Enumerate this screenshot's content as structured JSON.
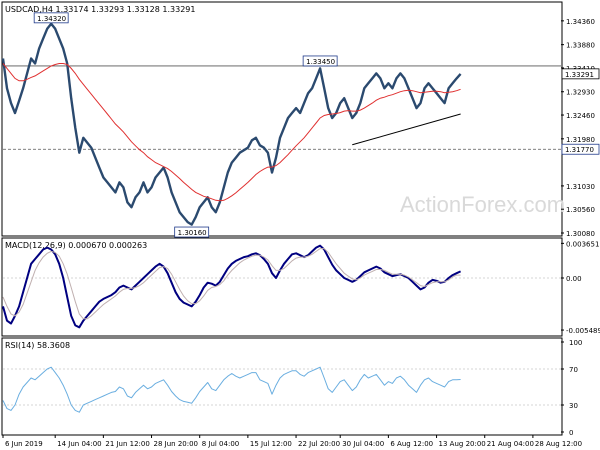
{
  "colors": {
    "price_line": "#2b4a6f",
    "ma_line": "#e03030",
    "macd_line": "#000080",
    "signal_line": "#c0b0b0",
    "rsi_line": "#6aaee0",
    "grid": "#c8c8c8",
    "label_border": "#1f3a8a",
    "watermark": "#d9d9d9"
  },
  "watermark": "ActionForex.com",
  "chart_data": [
    {
      "type": "line",
      "panel": "price",
      "title": "USDCAD,H4  1.33174 1.33293 1.33128 1.33291",
      "ylim": [
        1.3008,
        1.347
      ],
      "y_ticks": [
        "1.34360",
        "1.33880",
        "1.33410",
        "1.32930",
        "1.32460",
        "1.31980",
        "1.31030",
        "1.30560",
        "1.30080"
      ],
      "current_price": "1.33291",
      "levels": [
        {
          "value": 1.3177,
          "label": "1.31770",
          "style": "dashed"
        },
        {
          "value": 1.3345,
          "label": "",
          "style": "solid"
        }
      ],
      "annotations": [
        {
          "label": "1.34320",
          "index": 12,
          "value": 1.3432
        },
        {
          "label": "1.33450",
          "index": 79,
          "value": 1.3345
        },
        {
          "label": "1.30160",
          "index": 47,
          "value": 1.3016
        }
      ],
      "trendline": {
        "start": [
          87,
          1.3186
        ],
        "end": [
          114,
          1.3248
        ]
      },
      "series": [
        {
          "kind": "price",
          "values": [
            1.336,
            1.33,
            1.327,
            1.325,
            1.3275,
            1.33,
            1.333,
            1.336,
            1.335,
            1.338,
            1.34,
            1.342,
            1.343,
            1.342,
            1.34,
            1.338,
            1.335,
            1.328,
            1.322,
            1.317,
            1.32,
            1.319,
            1.318,
            1.316,
            1.314,
            1.312,
            1.311,
            1.31,
            1.309,
            1.311,
            1.31,
            1.307,
            1.306,
            1.308,
            1.309,
            1.311,
            1.309,
            1.31,
            1.312,
            1.313,
            1.314,
            1.312,
            1.309,
            1.307,
            1.305,
            1.304,
            1.303,
            1.3025,
            1.304,
            1.306,
            1.307,
            1.308,
            1.306,
            1.305,
            1.307,
            1.31,
            1.313,
            1.315,
            1.316,
            1.317,
            1.3175,
            1.318,
            1.3195,
            1.32,
            1.3185,
            1.318,
            1.317,
            1.313,
            1.316,
            1.32,
            1.322,
            1.324,
            1.325,
            1.326,
            1.325,
            1.327,
            1.329,
            1.33,
            1.332,
            1.334,
            1.33,
            1.326,
            1.324,
            1.325,
            1.327,
            1.328,
            1.326,
            1.324,
            1.325,
            1.327,
            1.33,
            1.331,
            1.332,
            1.333,
            1.332,
            1.33,
            1.331,
            1.33,
            1.332,
            1.333,
            1.332,
            1.33,
            1.328,
            1.326,
            1.327,
            1.33,
            1.331,
            1.33,
            1.329,
            1.328,
            1.327,
            1.33,
            1.331,
            1.332,
            1.3329
          ]
        },
        {
          "kind": "ma",
          "values": [
            1.335,
            1.334,
            1.333,
            1.332,
            1.3315,
            1.3315,
            1.3318,
            1.3322,
            1.3325,
            1.333,
            1.3335,
            1.334,
            1.3345,
            1.3348,
            1.335,
            1.335,
            1.3348,
            1.334,
            1.333,
            1.3318,
            1.3308,
            1.3298,
            1.3288,
            1.3278,
            1.3268,
            1.3258,
            1.3248,
            1.3238,
            1.3228,
            1.322,
            1.3212,
            1.3202,
            1.3192,
            1.3184,
            1.3176,
            1.317,
            1.3162,
            1.3156,
            1.315,
            1.3146,
            1.3142,
            1.3138,
            1.3132,
            1.3125,
            1.3118,
            1.311,
            1.3103,
            1.3096,
            1.309,
            1.3086,
            1.3082,
            1.308,
            1.3077,
            1.3074,
            1.3073,
            1.3074,
            1.3078,
            1.3083,
            1.3089,
            1.3096,
            1.3103,
            1.311,
            1.3118,
            1.3126,
            1.3132,
            1.3137,
            1.3141,
            1.3141,
            1.3144,
            1.315,
            1.3158,
            1.3166,
            1.3175,
            1.3184,
            1.3192,
            1.32,
            1.321,
            1.322,
            1.323,
            1.324,
            1.3245,
            1.3247,
            1.3248,
            1.3249,
            1.3251,
            1.3254,
            1.3255,
            1.3254,
            1.3254,
            1.3256,
            1.326,
            1.3265,
            1.327,
            1.3276,
            1.328,
            1.3282,
            1.3285,
            1.3287,
            1.329,
            1.3293,
            1.3295,
            1.3296,
            1.3295,
            1.3293,
            1.3291,
            1.3292,
            1.3293,
            1.3294,
            1.3294,
            1.3293,
            1.3291,
            1.3292,
            1.3293,
            1.3295,
            1.3298
          ]
        }
      ]
    },
    {
      "type": "line",
      "panel": "macd",
      "title": "MACD(12,26,9) 0.000670 0.000263",
      "ylim": [
        -0.0058,
        0.0039
      ],
      "y_ticks": [
        "0.003651",
        "0.00",
        "-0.005489"
      ],
      "series": [
        {
          "kind": "macd",
          "values": [
            -0.003,
            -0.0045,
            -0.0048,
            -0.004,
            -0.003,
            -0.0015,
            0.0,
            0.0015,
            0.002,
            0.0025,
            0.003,
            0.0032,
            0.003,
            0.0025,
            0.0015,
            0.0,
            -0.002,
            -0.004,
            -0.005,
            -0.0052,
            -0.0045,
            -0.004,
            -0.0035,
            -0.003,
            -0.0025,
            -0.0022,
            -0.002,
            -0.0018,
            -0.0015,
            -0.001,
            -0.0008,
            -0.001,
            -0.0012,
            -0.0008,
            -0.0004,
            0.0,
            0.0004,
            0.0008,
            0.0012,
            0.0015,
            0.0012,
            0.0005,
            -0.0005,
            -0.0015,
            -0.0022,
            -0.0026,
            -0.0028,
            -0.003,
            -0.0025,
            -0.0018,
            -0.001,
            -0.0005,
            -0.0006,
            -0.0008,
            -0.0004,
            0.0003,
            0.001,
            0.0015,
            0.0018,
            0.002,
            0.0022,
            0.0023,
            0.0025,
            0.0026,
            0.0024,
            0.002,
            0.0015,
            0.0005,
            0.0,
            0.0008,
            0.0015,
            0.002,
            0.0025,
            0.0026,
            0.0024,
            0.0022,
            0.0024,
            0.0028,
            0.0032,
            0.0034,
            0.003,
            0.0022,
            0.0014,
            0.0008,
            0.0004,
            0.0,
            -0.0002,
            -0.0004,
            -0.0002,
            0.0002,
            0.0006,
            0.0008,
            0.001,
            0.0012,
            0.001,
            0.0006,
            0.0004,
            0.0002,
            0.0003,
            0.0004,
            0.0002,
            0.0,
            -0.0004,
            -0.0008,
            -0.0012,
            -0.001,
            -0.0005,
            -0.0002,
            -0.0003,
            -0.0005,
            -0.0004,
            0.0,
            0.0003,
            0.0005,
            0.0007
          ]
        },
        {
          "kind": "signal",
          "values": [
            -0.002,
            -0.003,
            -0.0038,
            -0.004,
            -0.0036,
            -0.0028,
            -0.0016,
            -0.0004,
            0.0008,
            0.0016,
            0.0022,
            0.0026,
            0.0028,
            0.0027,
            0.0023,
            0.0015,
            0.0004,
            -0.001,
            -0.0025,
            -0.0038,
            -0.0043,
            -0.0043,
            -0.004,
            -0.0036,
            -0.0032,
            -0.0028,
            -0.0025,
            -0.0022,
            -0.0019,
            -0.0015,
            -0.0012,
            -0.0011,
            -0.0011,
            -0.001,
            -0.0008,
            -0.0005,
            -0.0001,
            0.0003,
            0.0007,
            0.0011,
            0.0012,
            0.001,
            0.0004,
            -0.0004,
            -0.0012,
            -0.0019,
            -0.0024,
            -0.0027,
            -0.0027,
            -0.0024,
            -0.0019,
            -0.0013,
            -0.001,
            -0.0009,
            -0.0007,
            -0.0003,
            0.0003,
            0.0008,
            0.0012,
            0.0016,
            0.0019,
            0.0021,
            0.0023,
            0.0024,
            0.0024,
            0.0022,
            0.0019,
            0.0013,
            0.0008,
            0.0008,
            0.001,
            0.0014,
            0.0018,
            0.0021,
            0.0022,
            0.0022,
            0.0023,
            0.0025,
            0.0028,
            0.0031,
            0.0031,
            0.0027,
            0.0021,
            0.0015,
            0.001,
            0.0005,
            0.0002,
            -0.0001,
            -0.0002,
            0.0,
            0.0003,
            0.0005,
            0.0007,
            0.0009,
            0.0009,
            0.0008,
            0.0006,
            0.0004,
            0.0004,
            0.0004,
            0.0003,
            0.0001,
            -0.0002,
            -0.0005,
            -0.0008,
            -0.0009,
            -0.0007,
            -0.0005,
            -0.0004,
            -0.0004,
            -0.0004,
            -0.0002,
            0.0001,
            0.0003,
            0.0003
          ]
        }
      ]
    },
    {
      "type": "line",
      "panel": "rsi",
      "title": "RSI(14) 58.3608",
      "ylim": [
        0,
        100
      ],
      "y_ticks": [
        "100",
        "70",
        "30",
        "0"
      ],
      "levels": [
        {
          "value": 70,
          "label": "70"
        },
        {
          "value": 30,
          "label": "30"
        }
      ],
      "series": [
        {
          "kind": "rsi",
          "values": [
            35,
            26,
            24,
            30,
            42,
            50,
            55,
            60,
            58,
            62,
            66,
            70,
            72,
            66,
            60,
            52,
            42,
            30,
            24,
            22,
            30,
            32,
            34,
            36,
            38,
            40,
            42,
            44,
            45,
            50,
            48,
            40,
            38,
            44,
            48,
            52,
            48,
            50,
            54,
            56,
            58,
            52,
            45,
            40,
            36,
            34,
            33,
            32,
            38,
            45,
            50,
            55,
            48,
            46,
            52,
            58,
            62,
            65,
            62,
            60,
            62,
            64,
            66,
            66,
            58,
            56,
            54,
            42,
            52,
            60,
            64,
            66,
            68,
            68,
            64,
            62,
            66,
            68,
            70,
            72,
            60,
            48,
            44,
            50,
            56,
            58,
            52,
            46,
            50,
            58,
            64,
            60,
            62,
            64,
            58,
            52,
            56,
            54,
            60,
            62,
            58,
            52,
            48,
            44,
            52,
            58,
            60,
            56,
            54,
            52,
            50,
            56,
            58,
            58,
            58.36
          ]
        }
      ]
    }
  ],
  "x_axis": {
    "labels": [
      {
        "text": "6 Jun 2019",
        "index": 0
      },
      {
        "text": "14 Jun 04:00",
        "index": 13
      },
      {
        "text": "21 Jun 12:00",
        "index": 25
      },
      {
        "text": "28 Jun 20:00",
        "index": 37
      },
      {
        "text": "8 Jul 04:00",
        "index": 49
      },
      {
        "text": "15 Jul 12:00",
        "index": 61
      },
      {
        "text": "22 Jul 20:00",
        "index": 73
      },
      {
        "text": "30 Jul 04:00",
        "index": 84
      },
      {
        "text": "6 Aug 12:00",
        "index": 96
      },
      {
        "text": "13 Aug 20:00",
        "index": 108
      },
      {
        "text": "21 Aug 04:00",
        "index": 120
      },
      {
        "text": "28 Aug 12:00",
        "index": 132
      }
    ],
    "count": 140
  }
}
